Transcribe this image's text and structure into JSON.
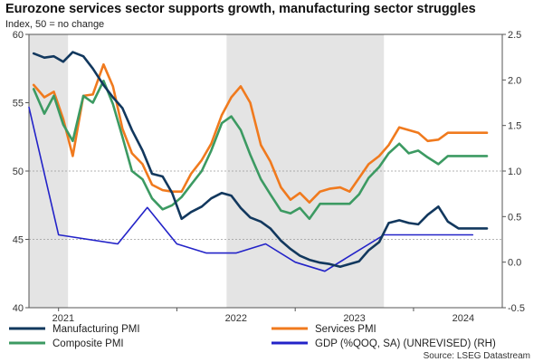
{
  "chart_data": {
    "type": "line",
    "title": "Eurozone services sector supports growth, manufacturing sector struggles",
    "subtitle": "Index, 50 = no change",
    "source": "Source: LSEG Datastream",
    "y_left": {
      "min": 40,
      "max": 60,
      "ticks": [
        "40",
        "45",
        "50",
        "55",
        "60"
      ]
    },
    "y_right": {
      "min": -0.5,
      "max": 2.5,
      "ticks": [
        "-0.5",
        "0.0",
        "0.5",
        "1.0",
        "1.5",
        "2.0",
        "2.5"
      ]
    },
    "x_range": [
      2020.75,
      2024.75
    ],
    "year_labels": [
      {
        "label": "2021",
        "x": 2021.0
      },
      {
        "label": "2022",
        "x": 2022.0
      },
      {
        "label": "2023",
        "x": 2023.0
      },
      {
        "label": "2024",
        "x": 2024.0
      }
    ],
    "shaded_periods": [
      [
        2020.75,
        2021.08
      ],
      [
        2022.42,
        2023.75
      ]
    ],
    "reference_lines": [
      {
        "axis": "left",
        "value": 45
      },
      {
        "axis": "left",
        "value": 50
      }
    ],
    "series": [
      {
        "name": "Manufacturing PMI",
        "color": "#12385e",
        "axis": "left",
        "x": [
          2020.79,
          2020.88,
          2020.96,
          2021.04,
          2021.12,
          2021.21,
          2021.29,
          2021.38,
          2021.46,
          2021.54,
          2021.62,
          2021.71,
          2021.79,
          2021.88,
          2021.96,
          2022.04,
          2022.12,
          2022.21,
          2022.29,
          2022.38,
          2022.46,
          2022.54,
          2022.62,
          2022.71,
          2022.79,
          2022.88,
          2022.96,
          2023.04,
          2023.12,
          2023.21,
          2023.29,
          2023.38,
          2023.46,
          2023.54,
          2023.62,
          2023.71,
          2023.79,
          2023.88,
          2023.96,
          2024.04,
          2024.12,
          2024.21,
          2024.29,
          2024.38,
          2024.46,
          2024.54,
          2024.62
        ],
        "values": [
          58.6,
          58.3,
          58.4,
          58.0,
          58.7,
          58.4,
          57.5,
          56.3,
          55.4,
          54.6,
          53.0,
          51.5,
          49.8,
          49.6,
          48.4,
          46.5,
          47.0,
          47.4,
          48.0,
          48.4,
          48.2,
          47.3,
          46.6,
          46.3,
          45.8,
          44.9,
          44.3,
          43.8,
          43.5,
          43.3,
          43.2,
          43.0,
          43.2,
          43.4,
          44.2,
          44.8,
          46.2,
          46.4,
          46.2,
          46.1,
          46.8,
          47.4,
          46.3,
          45.8,
          45.8,
          45.8,
          45.8
        ]
      },
      {
        "name": "Services PMI",
        "color": "#f07a1e",
        "axis": "left",
        "x": [
          2020.79,
          2020.88,
          2020.96,
          2021.04,
          2021.12,
          2021.21,
          2021.29,
          2021.38,
          2021.46,
          2021.54,
          2021.62,
          2021.71,
          2021.79,
          2021.88,
          2021.96,
          2022.04,
          2022.12,
          2022.21,
          2022.29,
          2022.38,
          2022.46,
          2022.54,
          2022.62,
          2022.71,
          2022.79,
          2022.88,
          2022.96,
          2023.04,
          2023.12,
          2023.21,
          2023.29,
          2023.38,
          2023.46,
          2023.54,
          2023.62,
          2023.71,
          2023.79,
          2023.88,
          2023.96,
          2024.04,
          2024.12,
          2024.21,
          2024.29,
          2024.38,
          2024.46,
          2024.54,
          2024.62
        ],
        "values": [
          56.3,
          55.4,
          55.8,
          53.8,
          51.1,
          55.5,
          55.6,
          57.8,
          56.2,
          53.1,
          51.3,
          50.5,
          49.0,
          48.6,
          48.5,
          48.5,
          49.8,
          50.8,
          52.0,
          54.1,
          55.4,
          56.2,
          55.0,
          51.9,
          50.7,
          48.8,
          47.9,
          48.4,
          47.7,
          48.5,
          48.7,
          48.8,
          48.5,
          49.5,
          50.5,
          51.1,
          51.9,
          53.2,
          53.0,
          52.8,
          52.2,
          52.3,
          52.8,
          52.8,
          52.8,
          52.8,
          52.8
        ]
      },
      {
        "name": "Composite PMI",
        "color": "#3c9a62",
        "axis": "left",
        "x": [
          2020.79,
          2020.88,
          2020.96,
          2021.04,
          2021.12,
          2021.21,
          2021.29,
          2021.38,
          2021.46,
          2021.54,
          2021.62,
          2021.71,
          2021.79,
          2021.88,
          2021.96,
          2022.04,
          2022.12,
          2022.21,
          2022.29,
          2022.38,
          2022.46,
          2022.54,
          2022.62,
          2022.71,
          2022.79,
          2022.88,
          2022.96,
          2023.04,
          2023.12,
          2023.21,
          2023.29,
          2023.38,
          2023.46,
          2023.54,
          2023.62,
          2023.71,
          2023.79,
          2023.88,
          2023.96,
          2024.04,
          2024.12,
          2024.21,
          2024.29,
          2024.38,
          2024.46,
          2024.54,
          2024.62
        ],
        "values": [
          56.0,
          54.2,
          55.5,
          53.4,
          52.2,
          55.5,
          55.0,
          56.6,
          54.9,
          52.5,
          50.0,
          49.4,
          48.0,
          47.2,
          47.5,
          48.1,
          49.0,
          50.0,
          51.5,
          53.5,
          54.0,
          53.0,
          51.2,
          49.4,
          48.3,
          47.1,
          46.9,
          47.3,
          46.5,
          47.6,
          47.6,
          47.6,
          47.6,
          48.3,
          49.5,
          50.3,
          51.3,
          52.0,
          51.3,
          51.5,
          51.0,
          50.5,
          51.1,
          51.1,
          51.1,
          51.1,
          51.1
        ]
      },
      {
        "name": "GDP (%QOQ, SA) (UNREVISED) (RH)",
        "color": "#2323c8",
        "axis": "right",
        "x": [
          2020.75,
          2021.0,
          2021.5,
          2021.75,
          2022.0,
          2022.25,
          2022.5,
          2022.75,
          2023.0,
          2023.25,
          2023.5,
          2023.75,
          2024.0,
          2024.25,
          2024.5
        ],
        "values": [
          1.7,
          0.3,
          0.2,
          0.6,
          0.2,
          0.1,
          0.1,
          0.2,
          0.0,
          -0.1,
          0.1,
          0.3,
          0.3,
          0.3,
          0.3
        ]
      }
    ],
    "legend": {
      "placement": "bottom",
      "items": [
        {
          "label": "Manufacturing PMI",
          "color": "#12385e"
        },
        {
          "label": "Services PMI",
          "color": "#f07a1e"
        },
        {
          "label": "Composite PMI",
          "color": "#3c9a62"
        },
        {
          "label": "GDP (%QOQ, SA) (UNREVISED) (RH)",
          "color": "#2323c8"
        }
      ]
    }
  }
}
